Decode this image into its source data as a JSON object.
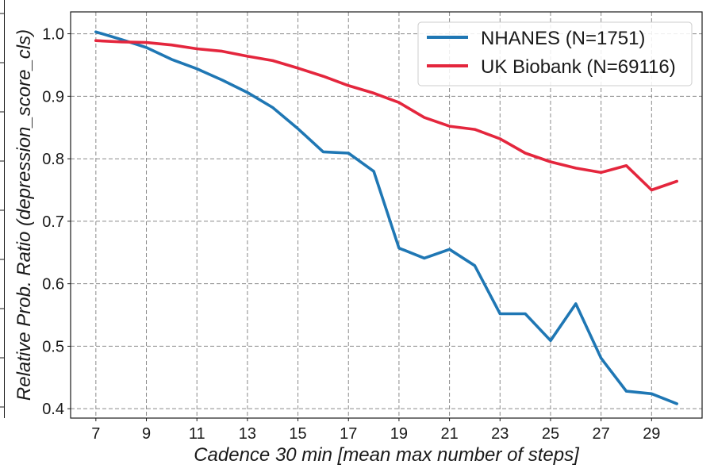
{
  "chart_data": {
    "type": "line",
    "title": "",
    "xlabel": "Cadence 30 min [mean max number of steps]",
    "ylabel": "Relative Prob. Ratio (depression_score_cls)",
    "xlim": [
      6.0,
      31.0
    ],
    "ylim": [
      0.385,
      1.035
    ],
    "xticks": [
      7,
      9,
      11,
      13,
      15,
      17,
      19,
      21,
      23,
      25,
      27,
      29
    ],
    "yticks": [
      0.4,
      0.5,
      0.6,
      0.7,
      0.8,
      0.9,
      1.0
    ],
    "ytick_labels": [
      "0.4",
      "0.5",
      "0.6",
      "0.7",
      "0.8",
      "0.9",
      "1.0"
    ],
    "grid": true,
    "legend_position": "top-right",
    "x": [
      7,
      8,
      9,
      10,
      11,
      12,
      13,
      14,
      15,
      16,
      17,
      18,
      19,
      20,
      21,
      22,
      23,
      24,
      25,
      26,
      27,
      28,
      29,
      30
    ],
    "series": [
      {
        "name": "NHANES (N=1751)",
        "color": "#1f77b4",
        "values": [
          1.003,
          0.991,
          0.978,
          0.959,
          0.944,
          0.926,
          0.906,
          0.882,
          0.848,
          0.811,
          0.809,
          0.78,
          0.657,
          0.641,
          0.655,
          0.629,
          0.552,
          0.552,
          0.509,
          0.568,
          0.481,
          0.428,
          0.424,
          0.408
        ]
      },
      {
        "name": "UK Biobank (N=69116)",
        "color": "#e4263d",
        "values": [
          0.989,
          0.987,
          0.986,
          0.982,
          0.976,
          0.972,
          0.964,
          0.957,
          0.945,
          0.932,
          0.917,
          0.905,
          0.89,
          0.866,
          0.852,
          0.847,
          0.832,
          0.809,
          0.795,
          0.785,
          0.778,
          0.789,
          0.75,
          0.764
        ]
      }
    ]
  }
}
